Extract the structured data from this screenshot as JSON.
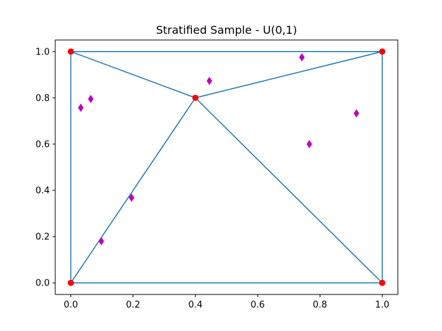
{
  "chart_data": {
    "type": "scatter",
    "title": "Stratified Sample - U(0,1)",
    "xlabel": "",
    "ylabel": "",
    "xlim": [
      -0.05,
      1.05
    ],
    "ylim": [
      -0.05,
      1.05
    ],
    "x_ticks": [
      "0.0",
      "0.2",
      "0.4",
      "0.6",
      "0.8",
      "1.0"
    ],
    "y_ticks": [
      "0.0",
      "0.2",
      "0.4",
      "0.6",
      "0.8",
      "1.0"
    ],
    "grid": false,
    "legend": "none",
    "colors": {
      "edges": "#1f77b4",
      "vertices": "#ff0000",
      "samples": "#bf00bf"
    },
    "vertices": [
      {
        "x": 0.0,
        "y": 0.0
      },
      {
        "x": 1.0,
        "y": 0.0
      },
      {
        "x": 1.0,
        "y": 1.0
      },
      {
        "x": 0.0,
        "y": 1.0
      },
      {
        "x": 0.4,
        "y": 0.8
      }
    ],
    "edges": [
      [
        0,
        1
      ],
      [
        1,
        2
      ],
      [
        2,
        3
      ],
      [
        3,
        0
      ],
      [
        0,
        4
      ],
      [
        1,
        4
      ],
      [
        2,
        4
      ],
      [
        3,
        4
      ]
    ],
    "samples": [
      {
        "x": 0.032,
        "y": 0.757
      },
      {
        "x": 0.064,
        "y": 0.795
      },
      {
        "x": 0.098,
        "y": 0.18
      },
      {
        "x": 0.195,
        "y": 0.368
      },
      {
        "x": 0.445,
        "y": 0.873
      },
      {
        "x": 0.742,
        "y": 0.975
      },
      {
        "x": 0.766,
        "y": 0.6
      },
      {
        "x": 0.917,
        "y": 0.733
      }
    ]
  }
}
